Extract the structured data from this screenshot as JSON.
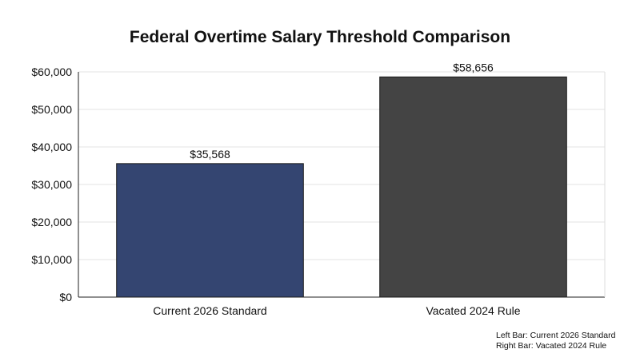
{
  "chart_data": {
    "type": "bar",
    "title": "Federal Overtime Salary Threshold Comparison",
    "categories": [
      "Current 2026 Standard",
      "Vacated 2024 Rule"
    ],
    "values": [
      35568,
      58656
    ],
    "value_labels": [
      "$35,568",
      "$58,656"
    ],
    "bar_colors": [
      "#344571",
      "#444444"
    ],
    "ylim": [
      0,
      60000
    ],
    "yticks": [
      0,
      10000,
      20000,
      30000,
      40000,
      50000,
      60000
    ],
    "ytick_labels": [
      "$0",
      "$10,000",
      "$20,000",
      "$30,000",
      "$40,000",
      "$50,000",
      "$60,000"
    ],
    "grid": "horizontal",
    "xlabel": "",
    "ylabel": "",
    "notes": [
      "Left Bar: Current 2026 Standard",
      "Right Bar: Vacated 2024 Rule"
    ],
    "notes_placement": "bottom-right"
  }
}
